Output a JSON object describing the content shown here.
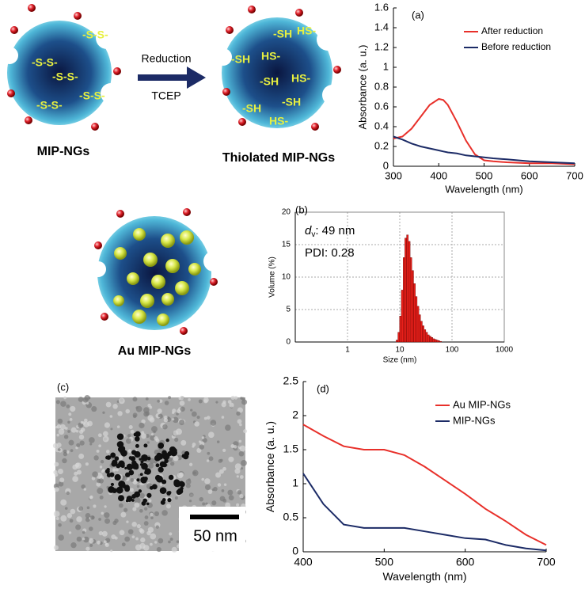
{
  "diagram": {
    "reduction": "Reduction",
    "reagent": "TCEP",
    "captions": [
      "MIP-NGs",
      "Thiolated MIP-NGs",
      "Au MIP-NGs"
    ],
    "disulfides": [
      "-S-S-",
      "-S-S-",
      "-S-S-",
      "-S-S-",
      "-S-S-"
    ],
    "thiols": [
      "-SH",
      "HS-",
      "-SH",
      "HS-",
      "-SH",
      "HS-",
      "-SH",
      "-SH",
      "HS-"
    ]
  },
  "tem": {
    "label": "(c)",
    "scale": "50 nm"
  },
  "chart_data": [
    {
      "type": "line",
      "label": "(a)",
      "x_label": "Wavelength (nm)",
      "y_label": "Absorbance (a. u.)",
      "x": [
        300,
        320,
        340,
        360,
        380,
        400,
        410,
        420,
        440,
        460,
        480,
        500,
        520,
        550,
        600,
        650,
        700
      ],
      "series": [
        {
          "name": "After reduction",
          "color": "#e8302a",
          "values": [
            0.28,
            0.3,
            0.38,
            0.5,
            0.62,
            0.68,
            0.67,
            0.62,
            0.45,
            0.26,
            0.12,
            0.06,
            0.05,
            0.04,
            0.03,
            0.03,
            0.02
          ]
        },
        {
          "name": "Before reduction",
          "color": "#1c2b66",
          "values": [
            0.3,
            0.27,
            0.23,
            0.2,
            0.18,
            0.16,
            0.15,
            0.14,
            0.13,
            0.11,
            0.1,
            0.09,
            0.08,
            0.07,
            0.05,
            0.04,
            0.03
          ]
        }
      ],
      "xlim": [
        300,
        700
      ],
      "xticks": [
        300,
        400,
        500,
        600,
        700
      ],
      "ylim": [
        0,
        1.6
      ],
      "yticks": [
        0,
        0.2,
        0.4,
        0.6,
        0.8,
        1,
        1.2,
        1.4,
        1.6
      ],
      "legend": "upper right",
      "grid": false
    },
    {
      "type": "histogram",
      "label": "(b)",
      "x_label": "Size (nm)",
      "y_label": "Volume (%)",
      "annotation_symbol": "d",
      "annotation_subscript": "v",
      "annotation_text": ":  49 nm",
      "annotation_pdi": "PDI: 0.28",
      "color": "#e8201a",
      "bins": [
        8.5,
        9.2,
        9.9,
        10.7,
        11.6,
        12.5,
        13.5,
        14.6,
        15.8,
        17.0,
        18.4,
        19.9,
        21.5,
        23.2,
        25.0,
        27.0,
        29.2,
        31.5,
        34.0,
        36.8,
        39.7,
        42.9,
        46.3,
        50.0,
        54.0,
        58.3,
        63.0
      ],
      "counts": [
        0.3,
        1.5,
        4,
        8,
        13,
        16,
        16.5,
        15.5,
        13,
        11,
        9,
        7,
        5.5,
        4.2,
        3.2,
        2.5,
        1.9,
        1.5,
        1.1,
        0.9,
        0.7,
        0.5,
        0.4,
        0.3,
        0.2,
        0.1
      ],
      "log_x": true,
      "xlim": [
        0.1,
        1000
      ],
      "xticks": [
        1,
        10,
        100,
        1000
      ],
      "ylim": [
        0,
        20
      ],
      "yticks": [
        0,
        5,
        10,
        15,
        20
      ],
      "grid": true
    },
    {
      "type": "line",
      "label": "(d)",
      "x_label": "Wavelength (nm)",
      "y_label": "Absorbance (a. u.)",
      "x": [
        400,
        425,
        450,
        475,
        500,
        525,
        550,
        575,
        600,
        625,
        650,
        675,
        700
      ],
      "series": [
        {
          "name": "Au MIP-NGs",
          "color": "#e8302a",
          "values": [
            1.87,
            1.7,
            1.55,
            1.5,
            1.5,
            1.42,
            1.25,
            1.05,
            0.85,
            0.63,
            0.45,
            0.25,
            0.1
          ]
        },
        {
          "name": "MIP-NGs",
          "color": "#1c2b66",
          "values": [
            1.15,
            0.7,
            0.4,
            0.35,
            0.35,
            0.35,
            0.3,
            0.25,
            0.2,
            0.18,
            0.1,
            0.05,
            0.02
          ]
        }
      ],
      "xlim": [
        400,
        700
      ],
      "xticks": [
        400,
        500,
        600,
        700
      ],
      "ylim": [
        0,
        2.5
      ],
      "yticks": [
        0,
        0.5,
        1,
        1.5,
        2,
        2.5
      ],
      "legend": "upper right",
      "grid": false
    }
  ]
}
